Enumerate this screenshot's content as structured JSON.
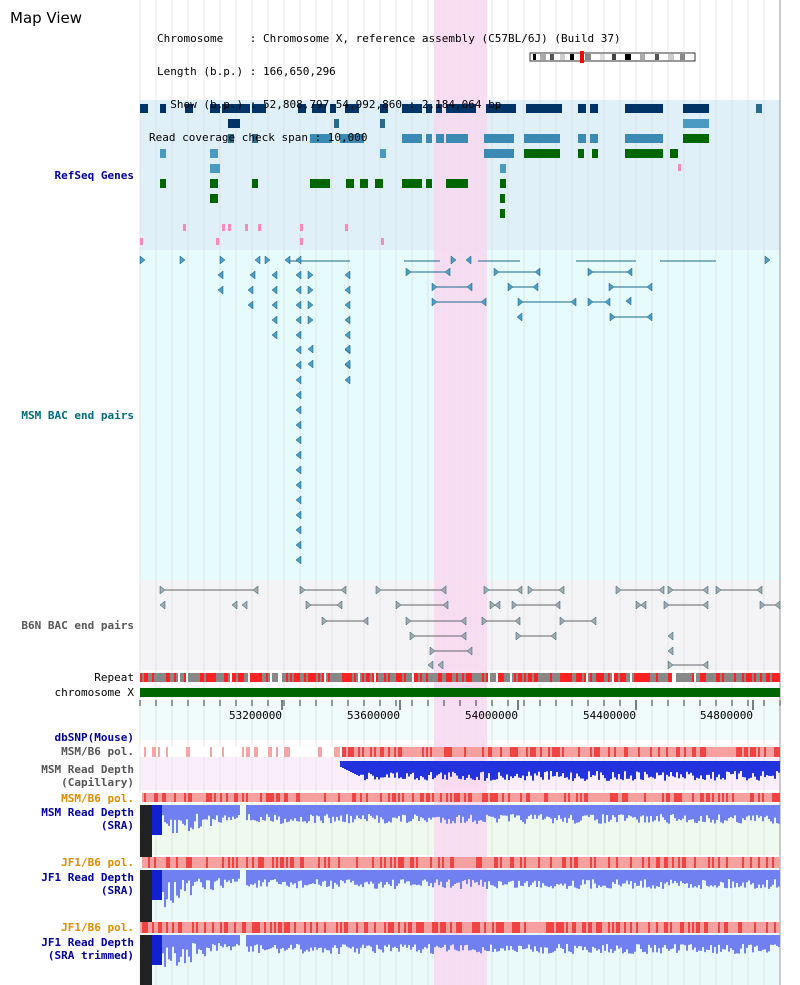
{
  "page": {
    "title": "Map View"
  },
  "info": {
    "chromosome": "Chromosome    : Chromosome X, reference assembly (C57BL/6J) (Build 37)",
    "length": "Length (b.p.) : 166,650,296",
    "show": "  Show (b.p.) : 52,808,797-54,992,860 : 2,184,064 bp",
    "span": "Read coverage check span : 10,000"
  },
  "tracks": {
    "refseq": "RefSeq Genes",
    "msm_bac": "MSM BAC end pairs",
    "b6n_bac": "B6N BAC end pairs",
    "repeat": "Repeat",
    "chromosome": "chromosome X",
    "dbsnp": "dbSNP(Mouse)",
    "msm_b6_pol_1": "MSM/B6 pol.",
    "msm_depth_cap_1": "MSM Read Depth",
    "msm_depth_cap_2": "(Capillary)",
    "msm_b6_pol_2": "MSM/B6 pol.",
    "msm_depth_sra_1": "MSM Read Depth",
    "msm_depth_sra_2": "(SRA)",
    "jf1_b6_pol_1": "JF1/B6 pol.",
    "jf1_depth_sra_1": "JF1 Read Depth",
    "jf1_depth_sra_2": "(SRA)",
    "jf1_b6_pol_2": "JF1/B6 pol.",
    "jf1_depth_trim_1": "JF1 Read Depth",
    "jf1_depth_trim_2": "(SRA trimmed)"
  },
  "ruler": {
    "ticks": [
      "53200000",
      "53600000",
      "54000000",
      "54400000",
      "54800000"
    ]
  },
  "colors": {
    "navy_label": "#00009a",
    "teal_label": "#006a7a",
    "gray_label": "#555555",
    "orange_label": "#e08c00",
    "highlight": "#f8d8f0",
    "chrom_green": "#006600"
  }
}
